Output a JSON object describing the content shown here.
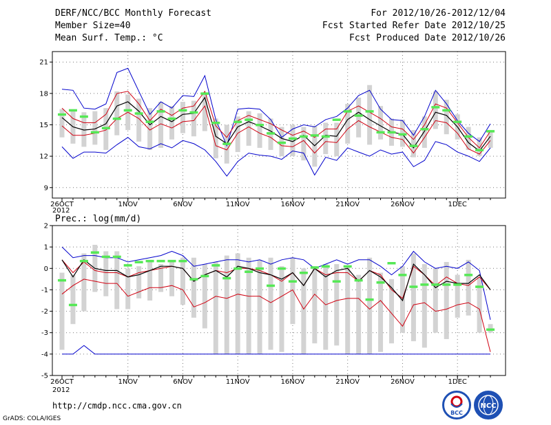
{
  "header": {
    "title": "DERF/NCC/BCC Monthly Forecast",
    "member_size": "Member Size=40",
    "variable": "Mean Surf. Temp.: °C",
    "forecast_period": "For 2012/10/26-2012/12/04",
    "started_refer": "Fcst Started Refer Date 2012/10/25",
    "produced": "Fcst Produced Date 2012/10/26"
  },
  "footer": {
    "url": "http://cmdp.ncc.cma.gov.cn",
    "grads": "GrADS: COLA/IGES",
    "logo1_text": "BCC",
    "logo2_text": "NCC"
  },
  "colors": {
    "ensemble_max_min": "#0000cc",
    "ensemble_spread": "#d00010",
    "ensemble_mean": "#000000",
    "range_bar": "#d3d3d3",
    "observation_marker": "#55e855"
  },
  "chart_data": [
    {
      "type": "line",
      "title": "Mean Surf. Temp.: °C",
      "xlabel": "",
      "ylabel": "Mean Surf. Temp.: °C",
      "ylim": [
        8,
        22
      ],
      "yticks": [
        9,
        12,
        15,
        18,
        21
      ],
      "grid": true,
      "x": [
        1,
        2,
        3,
        4,
        5,
        6,
        7,
        8,
        9,
        10,
        11,
        12,
        13,
        14,
        15,
        16,
        17,
        18,
        19,
        20,
        21,
        22,
        23,
        24,
        25,
        26,
        27,
        28,
        29,
        30,
        31,
        32,
        33,
        34,
        35,
        36,
        37,
        38,
        39,
        40
      ],
      "xtick_labels": [
        {
          "day": 1,
          "label": "26OCT",
          "sub": "2012"
        },
        {
          "day": 7,
          "label": "1NOV"
        },
        {
          "day": 12,
          "label": "6NOV"
        },
        {
          "day": 17,
          "label": "11NOV"
        },
        {
          "day": 22,
          "label": "16NOV"
        },
        {
          "day": 27,
          "label": "21NOV"
        },
        {
          "day": 32,
          "label": "26NOV"
        },
        {
          "day": 37,
          "label": "1DEC"
        }
      ],
      "series": [
        {
          "name": "max",
          "color": "#0000cc",
          "values": [
            18.4,
            18.3,
            16.6,
            16.5,
            17.0,
            20.0,
            20.4,
            18.2,
            16.0,
            17.2,
            16.6,
            17.8,
            17.7,
            19.7,
            15.5,
            13.0,
            16.5,
            16.6,
            16.5,
            15.5,
            13.8,
            14.6,
            15.0,
            14.8,
            15.5,
            15.8,
            16.6,
            17.8,
            18.3,
            16.5,
            15.5,
            15.4,
            14.0,
            15.8,
            18.3,
            17.0,
            15.4,
            14.2,
            13.4,
            15.1
          ]
        },
        {
          "name": "min",
          "color": "#0000cc",
          "values": [
            12.9,
            11.8,
            12.4,
            12.4,
            12.3,
            13.1,
            13.8,
            12.9,
            12.7,
            13.2,
            12.8,
            13.5,
            13.2,
            12.6,
            11.5,
            10.1,
            11.5,
            12.3,
            12.1,
            12.0,
            11.7,
            12.5,
            12.3,
            10.2,
            11.9,
            11.6,
            12.8,
            12.4,
            12.0,
            12.6,
            12.2,
            12.4,
            11.0,
            11.6,
            13.4,
            13.1,
            12.4,
            12.0,
            11.5,
            12.8
          ]
        },
        {
          "name": "upper_spread",
          "color": "#d00010",
          "values": [
            16.6,
            15.6,
            15.2,
            15.2,
            16.0,
            18.0,
            18.2,
            17.0,
            15.4,
            16.5,
            15.9,
            16.6,
            16.8,
            18.2,
            14.9,
            13.8,
            15.4,
            15.9,
            15.5,
            15.1,
            14.5,
            14.0,
            14.4,
            13.8,
            14.6,
            14.6,
            16.3,
            16.8,
            16.2,
            15.6,
            14.8,
            14.6,
            13.6,
            15.0,
            17.0,
            16.6,
            15.2,
            13.8,
            12.8,
            14.4
          ]
        },
        {
          "name": "lower_spread",
          "color": "#d00010",
          "values": [
            14.9,
            14.0,
            14.0,
            14.2,
            14.5,
            15.6,
            16.2,
            15.6,
            14.5,
            15.1,
            14.7,
            15.3,
            15.4,
            16.8,
            13.0,
            12.6,
            14.2,
            14.8,
            14.2,
            13.8,
            13.0,
            12.9,
            13.5,
            12.3,
            13.4,
            13.3,
            14.6,
            15.4,
            14.8,
            14.3,
            13.8,
            13.6,
            12.3,
            13.8,
            15.4,
            15.2,
            14.2,
            12.7,
            12.2,
            13.5
          ]
        },
        {
          "name": "ensemble_mean",
          "color": "#000000",
          "values": [
            15.7,
            14.8,
            14.5,
            14.6,
            15.1,
            16.8,
            17.2,
            16.3,
            15.0,
            15.8,
            15.3,
            16.0,
            16.1,
            17.6,
            13.9,
            13.2,
            14.8,
            15.3,
            14.9,
            14.4,
            13.7,
            13.4,
            14.0,
            13.0,
            14.0,
            13.9,
            15.5,
            16.2,
            15.5,
            14.9,
            14.3,
            14.1,
            12.8,
            14.4,
            16.2,
            15.9,
            14.8,
            13.3,
            12.5,
            13.9
          ]
        },
        {
          "name": "range_bar_top",
          "color": "#d3d3d3",
          "values": [
            16.5,
            16.4,
            16.2,
            16.3,
            16.6,
            18.2,
            17.9,
            17.5,
            16.6,
            17.2,
            16.8,
            17.2,
            17.3,
            18.1,
            15.6,
            15.0,
            15.8,
            16.3,
            16.1,
            15.6,
            14.8,
            15.0,
            14.8,
            14.9,
            15.2,
            15.2,
            17.0,
            17.6,
            18.8,
            16.8,
            15.6,
            15.5,
            14.5,
            15.8,
            18.2,
            17.4,
            16.0,
            14.8,
            13.8,
            14.4
          ]
        },
        {
          "name": "range_bar_bottom",
          "color": "#d3d3d3",
          "values": [
            13.8,
            13.2,
            12.9,
            13.1,
            12.6,
            14.0,
            14.5,
            13.4,
            12.6,
            12.8,
            13.6,
            14.2,
            13.9,
            14.4,
            11.8,
            11.3,
            12.4,
            13.0,
            12.8,
            12.6,
            12.0,
            12.0,
            11.6,
            11.0,
            12.2,
            12.0,
            13.2,
            13.8,
            13.1,
            13.6,
            13.0,
            12.9,
            11.9,
            12.8,
            14.6,
            14.1,
            13.6,
            12.6,
            12.0,
            12.8
          ]
        },
        {
          "name": "observation",
          "color": "#55e855",
          "values": [
            16.0,
            16.4,
            15.8,
            14.3,
            14.7,
            15.6,
            16.4,
            16.1,
            15.3,
            16.3,
            15.6,
            16.4,
            16.2,
            18.0,
            15.2,
            13.2,
            15.3,
            15.5,
            15.0,
            14.2,
            13.3,
            13.7,
            13.9,
            14.0,
            13.9,
            15.5,
            16.3,
            15.9,
            16.3,
            14.3,
            14.3,
            14.1,
            13.0,
            14.6,
            16.7,
            16.4,
            15.3,
            13.9,
            12.6,
            14.4
          ]
        }
      ]
    },
    {
      "type": "line",
      "title": "Prec.: log(mm/d)",
      "xlabel": "",
      "ylabel": "Prec.: log(mm/d)",
      "ylim": [
        -5,
        2
      ],
      "yticks": [
        -5,
        -4,
        -3,
        -2,
        -1,
        0,
        1,
        2
      ],
      "grid": true,
      "x": [
        1,
        2,
        3,
        4,
        5,
        6,
        7,
        8,
        9,
        10,
        11,
        12,
        13,
        14,
        15,
        16,
        17,
        18,
        19,
        20,
        21,
        22,
        23,
        24,
        25,
        26,
        27,
        28,
        29,
        30,
        31,
        32,
        33,
        34,
        35,
        36,
        37,
        38,
        39,
        40
      ],
      "xtick_labels": [
        {
          "day": 1,
          "label": "26OCT",
          "sub": "2012"
        },
        {
          "day": 7,
          "label": "1NOV"
        },
        {
          "day": 12,
          "label": "6NOV"
        },
        {
          "day": 17,
          "label": "11NOV"
        },
        {
          "day": 22,
          "label": "16NOV"
        },
        {
          "day": 27,
          "label": "21NOV"
        },
        {
          "day": 32,
          "label": "26NOV"
        },
        {
          "day": 37,
          "label": "1DEC"
        }
      ],
      "series": [
        {
          "name": "max",
          "color": "#0000cc",
          "values": [
            1.0,
            0.5,
            0.6,
            0.6,
            0.5,
            0.5,
            0.3,
            0.4,
            0.5,
            0.6,
            0.8,
            0.6,
            0.1,
            0.2,
            0.3,
            0.4,
            0.4,
            0.3,
            0.4,
            0.2,
            0.4,
            0.5,
            0.4,
            0.0,
            0.2,
            0.4,
            0.2,
            0.4,
            0.4,
            0.1,
            -0.3,
            0.1,
            0.8,
            0.3,
            0.0,
            0.1,
            0.0,
            0.3,
            -0.1,
            -2.4
          ]
        },
        {
          "name": "min",
          "color": "#0000cc",
          "values": [
            -4.0,
            -4.0,
            -3.6,
            -4.0,
            -4.0,
            -4.0,
            -4.0,
            -4.0,
            -4.0,
            -4.0,
            -4.0,
            -4.0,
            -4.0,
            -4.0,
            -4.0,
            -4.0,
            -4.0,
            -4.0,
            -4.0,
            -4.0,
            -4.0,
            -4.0,
            -4.0,
            -4.0,
            -4.0,
            -4.0,
            -4.0,
            -4.0,
            -4.0,
            -4.0,
            -4.0,
            -4.0,
            -4.0,
            -4.0,
            -4.0,
            -4.0,
            -4.0,
            -4.0,
            -4.0,
            -4.0
          ]
        },
        {
          "name": "upper_spread",
          "color": "#d00010",
          "values": [
            0.4,
            -0.2,
            0.3,
            -0.1,
            -0.2,
            -0.2,
            -0.4,
            -0.2,
            -0.1,
            0.0,
            0.1,
            0.0,
            -0.6,
            -0.3,
            -0.1,
            -0.2,
            0.0,
            0.0,
            -0.1,
            -0.3,
            -0.6,
            -0.2,
            -0.8,
            0.0,
            -0.3,
            -0.2,
            -0.2,
            -0.6,
            -0.1,
            -0.3,
            -1.0,
            -1.4,
            0.1,
            -0.3,
            -0.8,
            -0.4,
            -0.7,
            -0.8,
            -0.4,
            -1.0
          ]
        },
        {
          "name": "lower_spread",
          "color": "#d00010",
          "values": [
            -1.2,
            -0.8,
            -0.5,
            -0.6,
            -0.7,
            -0.7,
            -1.3,
            -1.1,
            -0.9,
            -0.9,
            -0.8,
            -1.0,
            -1.8,
            -1.6,
            -1.3,
            -1.4,
            -1.2,
            -1.3,
            -1.3,
            -1.6,
            -1.3,
            -1.0,
            -1.9,
            -1.2,
            -1.7,
            -1.5,
            -1.4,
            -1.4,
            -1.9,
            -1.5,
            -2.1,
            -2.7,
            -1.7,
            -1.6,
            -2.0,
            -1.9,
            -1.7,
            -1.6,
            -1.9,
            -3.9
          ]
        },
        {
          "name": "ensemble_mean",
          "color": "#000000",
          "values": [
            0.4,
            -0.4,
            0.4,
            0.0,
            -0.1,
            -0.1,
            -0.4,
            -0.3,
            -0.1,
            0.1,
            0.1,
            0.0,
            -0.6,
            -0.3,
            -0.1,
            -0.4,
            0.1,
            0.0,
            -0.2,
            -0.3,
            -0.5,
            -0.2,
            -0.8,
            0.0,
            -0.4,
            -0.1,
            0.0,
            -0.6,
            -0.1,
            -0.4,
            -0.9,
            -1.5,
            0.2,
            -0.3,
            -0.9,
            -0.6,
            -0.7,
            -0.7,
            -0.3,
            -1.0
          ]
        },
        {
          "name": "range_bar_top",
          "color": "#d3d3d3",
          "values": [
            -0.2,
            -0.3,
            0.7,
            1.1,
            0.8,
            0.8,
            0.0,
            0.1,
            0.3,
            0.2,
            0.3,
            0.5,
            0.5,
            0.2,
            0.3,
            0.6,
            0.7,
            0.5,
            0.4,
            0.5,
            0.1,
            0.5,
            0.0,
            0.1,
            0.2,
            0.2,
            0.1,
            -0.3,
            0.5,
            -0.2,
            -0.5,
            0.1,
            0.7,
            0.2,
            0.0,
            0.3,
            -0.3,
            0.4,
            -0.4,
            -2.6
          ]
        },
        {
          "name": "range_bar_bottom",
          "color": "#d3d3d3",
          "values": [
            -3.8,
            -2.6,
            -2.0,
            -1.1,
            -1.3,
            -1.9,
            -1.9,
            -1.4,
            -1.5,
            -1.1,
            -1.3,
            -1.7,
            -2.3,
            -2.8,
            -4.0,
            -4.0,
            -4.0,
            -4.0,
            -4.0,
            -3.8,
            -3.9,
            -2.6,
            -4.0,
            -3.5,
            -3.8,
            -3.6,
            -4.0,
            -4.0,
            -4.0,
            -3.9,
            -3.5,
            -3.0,
            -3.4,
            -3.7,
            -3.0,
            -3.3,
            -2.3,
            -2.2,
            -3.0,
            -3.0
          ]
        },
        {
          "name": "observation",
          "color": "#55e855",
          "values": [
            -0.55,
            -1.7,
            0.35,
            0.75,
            0.55,
            0.55,
            0.15,
            0.3,
            0.35,
            0.35,
            0.35,
            0.35,
            -0.5,
            -0.35,
            0.15,
            -0.45,
            0.0,
            -0.15,
            0.0,
            -0.8,
            0.0,
            -0.6,
            -0.2,
            0.05,
            0.1,
            -0.6,
            0.1,
            -0.55,
            -1.45,
            -0.65,
            0.25,
            -0.3,
            -0.85,
            -0.75,
            -0.75,
            -0.75,
            -0.75,
            -0.3,
            -0.85,
            -2.85
          ]
        }
      ]
    }
  ]
}
